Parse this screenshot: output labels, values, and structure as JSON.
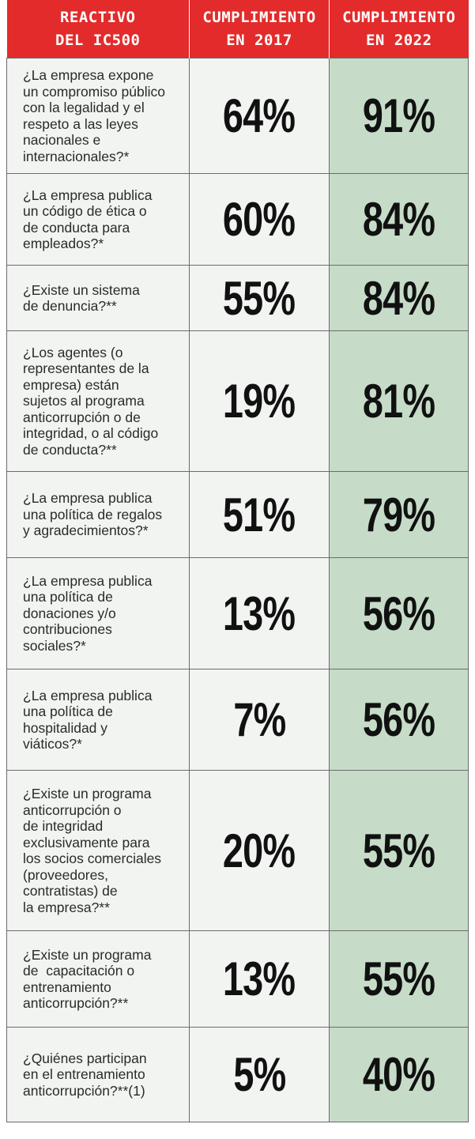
{
  "header": {
    "col1": [
      "REACTIVO",
      "DEL IC500"
    ],
    "col2": [
      "CUMPLIMIENTO",
      "EN 2017"
    ],
    "col3": [
      "CUMPLIMIENTO",
      "EN 2022"
    ]
  },
  "colors": {
    "header_bg": "#e32b2b",
    "header_text": "#ffffff",
    "cell_bg": "#f2f4f2",
    "highlight_bg": "#c6dcc8",
    "border": "#6b6b6b"
  },
  "rows": [
    {
      "question_lines": [
        "¿La empresa expone",
        "un compromiso público",
        "con la legalidad y el",
        "respeto a las leyes",
        "nacionales e",
        "internacionales?*"
      ],
      "y2017": "64%",
      "y2022": "91%"
    },
    {
      "question_lines": [
        "¿La empresa publica",
        "un código de ética o",
        "de conducta para",
        "empleados?*"
      ],
      "y2017": "60%",
      "y2022": "84%"
    },
    {
      "question_lines": [
        "¿Existe un sistema",
        "de denuncia?**"
      ],
      "y2017": "55%",
      "y2022": "84%"
    },
    {
      "question_lines": [
        "¿Los agentes (o",
        "representantes de la",
        "empresa) están",
        "sujetos al programa",
        "anticorrupción o de",
        "integridad, o al código",
        "de conducta?**"
      ],
      "y2017": "19%",
      "y2022": "81%"
    },
    {
      "question_lines": [
        "¿La empresa publica",
        "una política de regalos",
        "y agradecimientos?*"
      ],
      "y2017": "51%",
      "y2022": "79%"
    },
    {
      "question_lines": [
        "¿La empresa publica",
        "una política de",
        "donaciones y/o",
        "contribuciones",
        "sociales?*"
      ],
      "y2017": "13%",
      "y2022": "56%"
    },
    {
      "question_lines": [
        "¿La empresa publica",
        "una política de",
        "hospitalidad y",
        "viáticos?*"
      ],
      "y2017": "7%",
      "y2022": "56%"
    },
    {
      "question_lines": [
        "¿Existe un programa",
        "anticorrupción o",
        "de integridad",
        "exclusivamente para",
        "los socios comerciales",
        "(proveedores,",
        "contratistas) de",
        "la empresa?**"
      ],
      "y2017": "20%",
      "y2022": "55%"
    },
    {
      "question_lines": [
        "¿Existe un programa",
        "de  capacitación o",
        "entrenamiento",
        "anticorrupción?**"
      ],
      "y2017": "13%",
      "y2022": "55%"
    },
    {
      "question_lines": [
        "¿Quiénes participan",
        "en el entrenamiento",
        "anticorrupción?**(1)"
      ],
      "y2017": "5%",
      "y2022": "40%"
    }
  ]
}
